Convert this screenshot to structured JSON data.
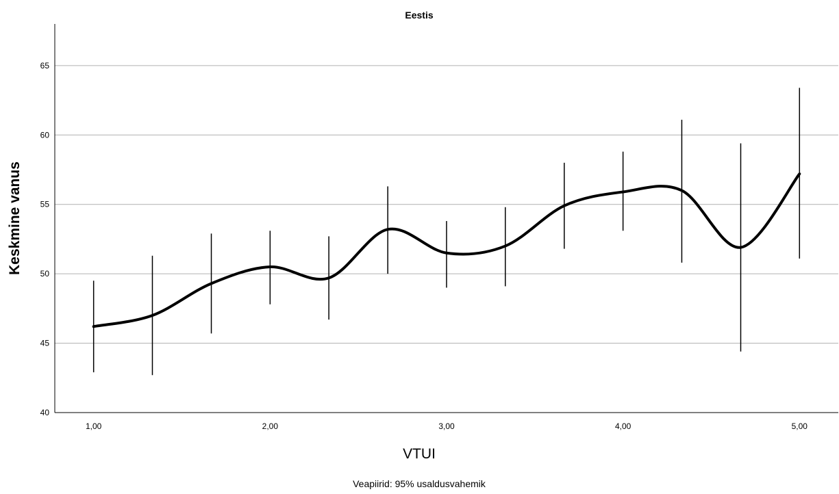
{
  "chart_data": {
    "type": "line",
    "title": "Eestis",
    "xlabel": "VTUI",
    "ylabel": "Keskmine vanus",
    "footnote": "Veapiirid: 95% usaldusvahemik",
    "xlim": [
      0.78,
      5.22
    ],
    "ylim": [
      40,
      68
    ],
    "x_ticks": [
      1,
      2,
      3,
      4,
      5
    ],
    "x_tick_labels": [
      "1,00",
      "2,00",
      "3,00",
      "4,00",
      "5,00"
    ],
    "y_ticks": [
      40,
      45,
      50,
      55,
      60,
      65
    ],
    "y_tick_labels": [
      "40",
      "45",
      "50",
      "55",
      "60",
      "65"
    ],
    "grid": "horizontal",
    "line_color": "#000000",
    "grid_color": "#b0b0b0",
    "series": [
      {
        "x": [
          1.0,
          1.333,
          1.667,
          2.0,
          2.333,
          2.667,
          3.0,
          3.333,
          3.667,
          4.0,
          4.333,
          4.667,
          5.0
        ],
        "y": [
          46.2,
          47.0,
          49.3,
          50.5,
          49.7,
          53.2,
          51.5,
          52.0,
          54.9,
          55.9,
          56.0,
          51.9,
          57.2
        ],
        "error_low": [
          42.9,
          42.7,
          45.7,
          47.8,
          46.7,
          50.0,
          49.0,
          49.1,
          51.8,
          53.1,
          50.8,
          44.4,
          51.1
        ],
        "error_high": [
          49.5,
          51.3,
          52.9,
          53.1,
          52.7,
          56.3,
          53.8,
          54.8,
          58.0,
          58.8,
          61.1,
          59.4,
          63.4
        ]
      }
    ]
  }
}
